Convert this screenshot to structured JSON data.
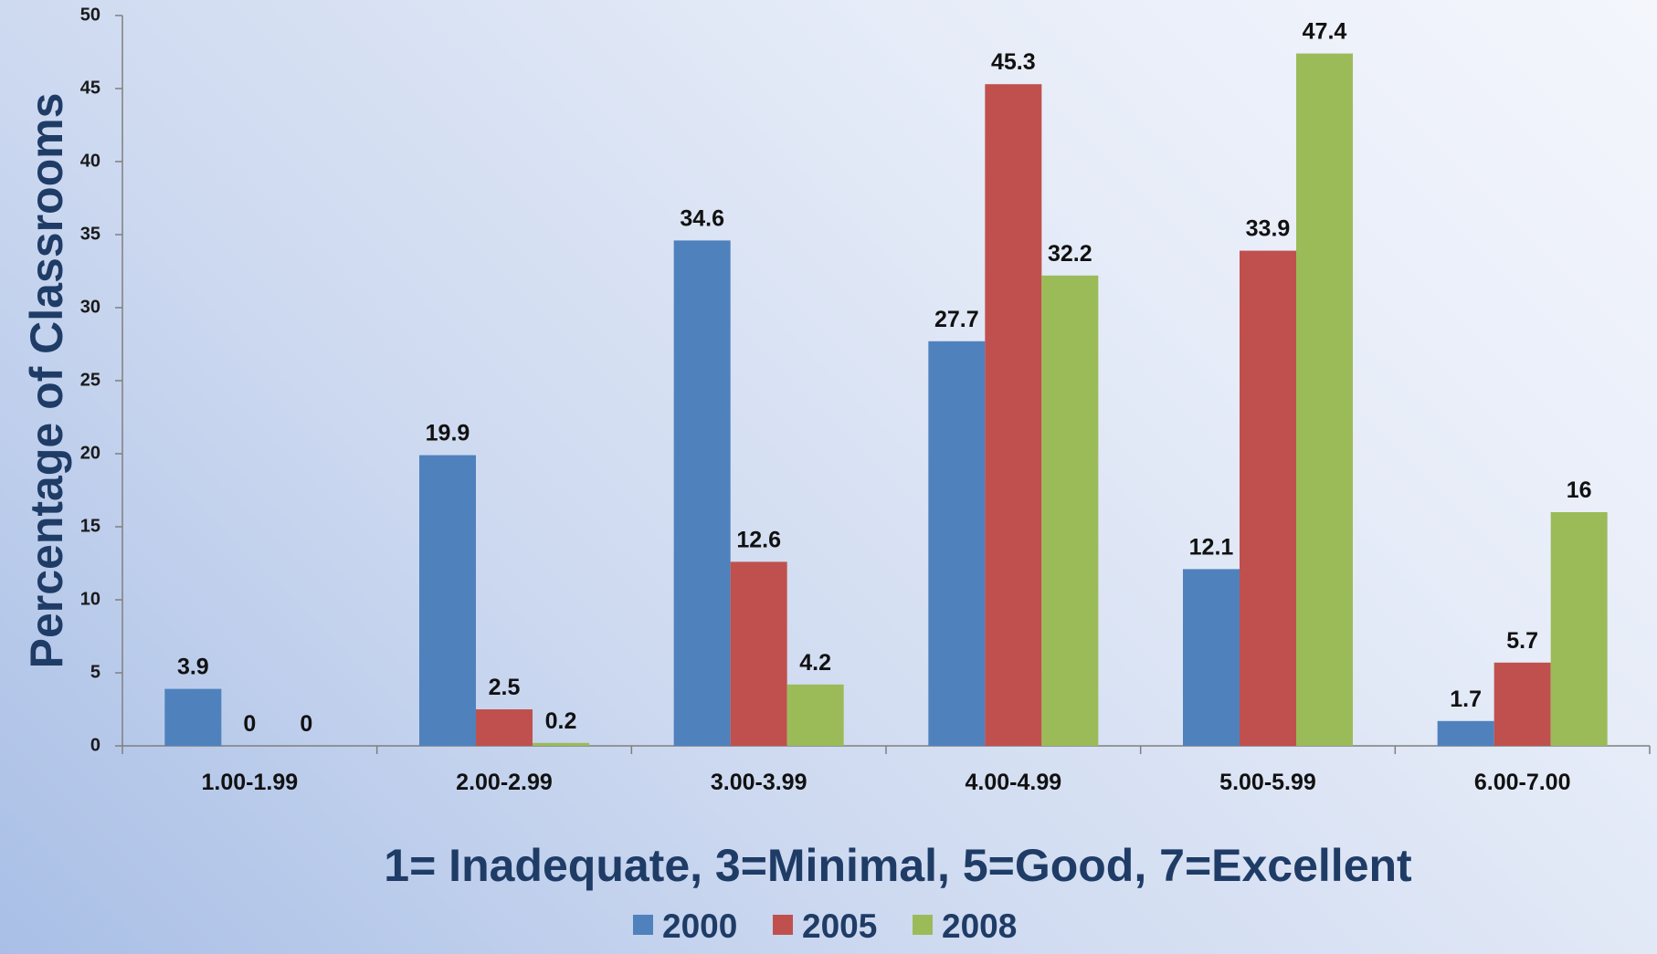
{
  "chart_data": {
    "type": "bar",
    "categories": [
      "1.00-1.99",
      "2.00-2.99",
      "3.00-3.99",
      "4.00-4.99",
      "5.00-5.99",
      "6.00-7.00"
    ],
    "series": [
      {
        "name": "2000",
        "color": "#4f81bd",
        "values": [
          3.9,
          19.9,
          34.6,
          27.7,
          12.1,
          1.7
        ]
      },
      {
        "name": "2005",
        "color": "#c0504d",
        "values": [
          0,
          2.5,
          12.6,
          45.3,
          33.9,
          5.7
        ]
      },
      {
        "name": "2008",
        "color": "#9bbb59",
        "values": [
          0,
          0.2,
          4.2,
          32.2,
          47.4,
          16
        ]
      }
    ],
    "data_labels": [
      [
        "3.9",
        "19.9",
        "34.6",
        "27.7",
        "12.1",
        "1.7"
      ],
      [
        "0",
        "2.5",
        "12.6",
        "45.3",
        "33.9",
        "5.7"
      ],
      [
        "0",
        "0.2",
        "4.2",
        "32.2",
        "47.4",
        "16"
      ]
    ],
    "ylabel": "Percentage of Classrooms",
    "xlabel": "1= Inadequate, 3=Minimal, 5=Good, 7=Excellent",
    "ylim": [
      0,
      50
    ],
    "yticks": [
      0,
      5,
      10,
      15,
      20,
      25,
      30,
      35,
      40,
      45,
      50
    ],
    "grid": false,
    "legend": "bottom-center"
  }
}
